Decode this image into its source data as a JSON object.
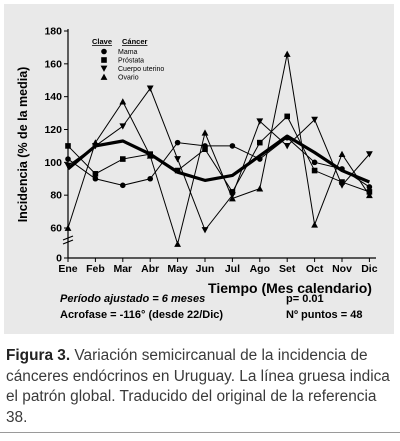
{
  "chart_data": {
    "type": "line",
    "ylabel": "Incidencia (% de la media)",
    "xlabel": "Tiempo (Mes calendario)",
    "categories": [
      "Ene",
      "Feb",
      "Mar",
      "Abr",
      "May",
      "Jun",
      "Jul",
      "Ago",
      "Set",
      "Oct",
      "Nov",
      "Dic"
    ],
    "ylim": [
      40,
      180
    ],
    "y_ticks": [
      "180",
      "160",
      "140",
      "120",
      "100",
      "80",
      "60",
      "0"
    ],
    "axis_break": true,
    "legend": {
      "header_key": "Clave",
      "header_name": "Cáncer",
      "placement": "top-left"
    },
    "series": [
      {
        "name": "Mama",
        "marker": "circle",
        "values": [
          102,
          90,
          86,
          90,
          112,
          110,
          110,
          102,
          115,
          100,
          96,
          85
        ]
      },
      {
        "name": "Próstata",
        "marker": "square",
        "values": [
          110,
          93,
          102,
          105,
          95,
          108,
          82,
          112,
          128,
          95,
          88,
          82
        ]
      },
      {
        "name": "Cuerpo uterino",
        "marker": "triangle-down",
        "values": [
          98,
          110,
          122,
          145,
          102,
          58,
          80,
          125,
          110,
          126,
          86,
          105
        ]
      },
      {
        "name": "Ovario",
        "marker": "triangle-up",
        "values": [
          60,
          112,
          137,
          104,
          44,
          118,
          78,
          84,
          166,
          62,
          105,
          80
        ]
      }
    ],
    "global_pattern": {
      "values": [
        96,
        110,
        113,
        105,
        94,
        89,
        92,
        104,
        116,
        106,
        95,
        88
      ]
    },
    "annotations": {
      "period": "Período ajustado = 6 meses",
      "p_value": "p= 0.01",
      "acrophase": "Acrofase = -116° (desde 22/Dic)",
      "points": "Nº puntos = 48"
    }
  },
  "caption": {
    "lead": "Figura 3.",
    "text": " Variación semicircanual de la incidencia de cánceres endócrinos en Uruguay. La línea gruesa indica el patrón global. Traducido del original de la referencia 38."
  }
}
